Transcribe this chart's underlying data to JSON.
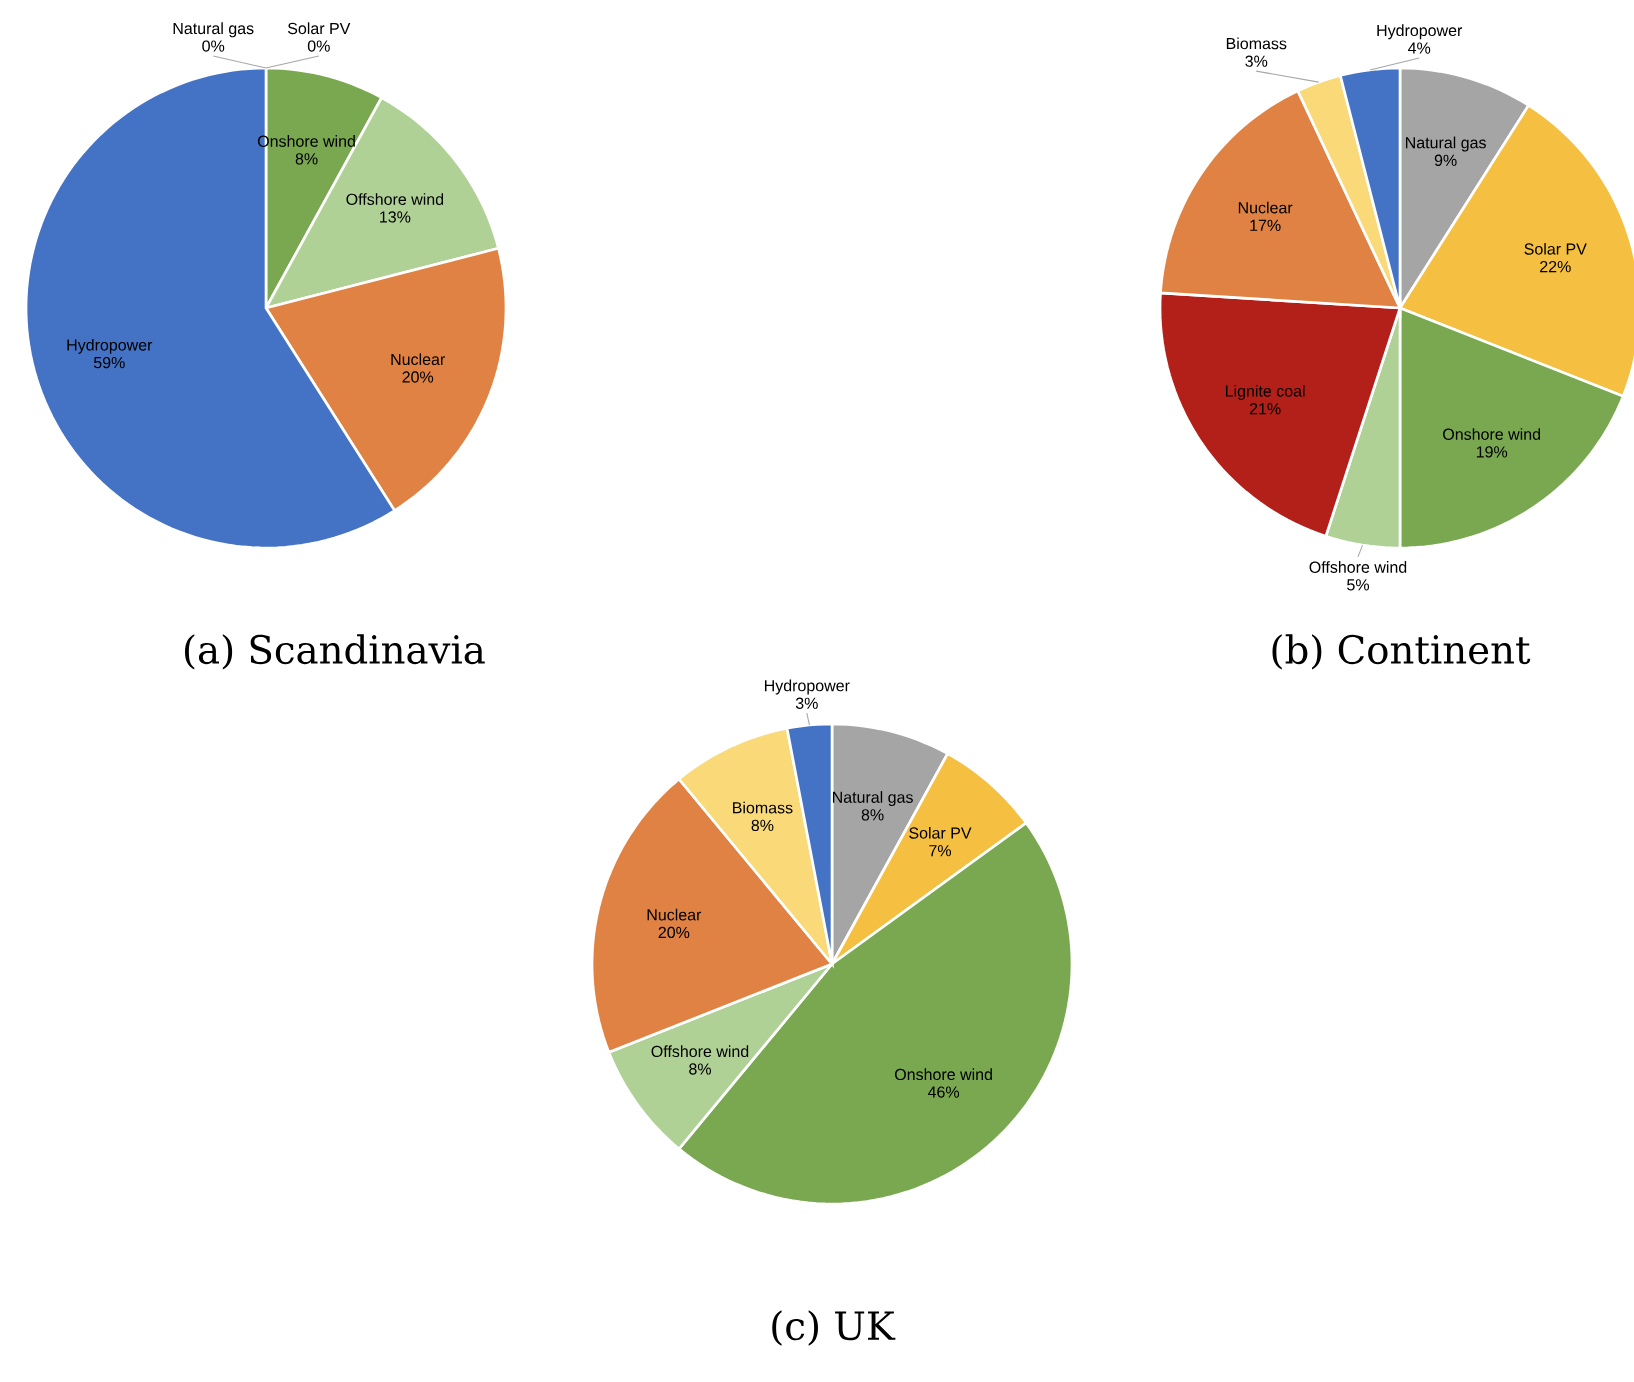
{
  "chart_data": [
    {
      "type": "pie",
      "title": "(a) Scandinavia",
      "categories": [
        "Natural gas",
        "Solar PV",
        "Onshore wind",
        "Offshore wind",
        "Nuclear",
        "Hydropower"
      ],
      "values": [
        0,
        0,
        8,
        13,
        20,
        59
      ],
      "value_labels": [
        "0%",
        "0%",
        "8%",
        "13%",
        "20%",
        "59%"
      ],
      "colors": [
        "#a5a5a5",
        "#f5bf41",
        "#7aa851",
        "#b0d196",
        "#e08243",
        "#4472c4"
      ]
    },
    {
      "type": "pie",
      "title": "(b) Continent",
      "categories": [
        "Natural gas",
        "Solar PV",
        "Onshore wind",
        "Offshore wind",
        "Lignite coal",
        "Nuclear",
        "Biomass",
        "Hydropower"
      ],
      "values": [
        9,
        22,
        19,
        5,
        21,
        17,
        3,
        4
      ],
      "value_labels": [
        "9%",
        "22%",
        "19%",
        "5%",
        "21%",
        "17%",
        "3%",
        "4%"
      ],
      "colors": [
        "#a5a5a5",
        "#f5bf41",
        "#7aa851",
        "#b0d196",
        "#b3201a",
        "#e08243",
        "#f9d978",
        "#4472c4"
      ]
    },
    {
      "type": "pie",
      "title": "(c) UK",
      "categories": [
        "Natural gas",
        "Solar PV",
        "Onshore wind",
        "Offshore wind",
        "Nuclear",
        "Biomass",
        "Hydropower"
      ],
      "values": [
        8,
        7,
        46,
        8,
        20,
        8,
        3
      ],
      "value_labels": [
        "8%",
        "7%",
        "46%",
        "8%",
        "20%",
        "8%",
        "3%"
      ],
      "colors": [
        "#a5a5a5",
        "#f5bf41",
        "#7aa851",
        "#b0d196",
        "#e08243",
        "#f9d978",
        "#4472c4"
      ]
    }
  ]
}
